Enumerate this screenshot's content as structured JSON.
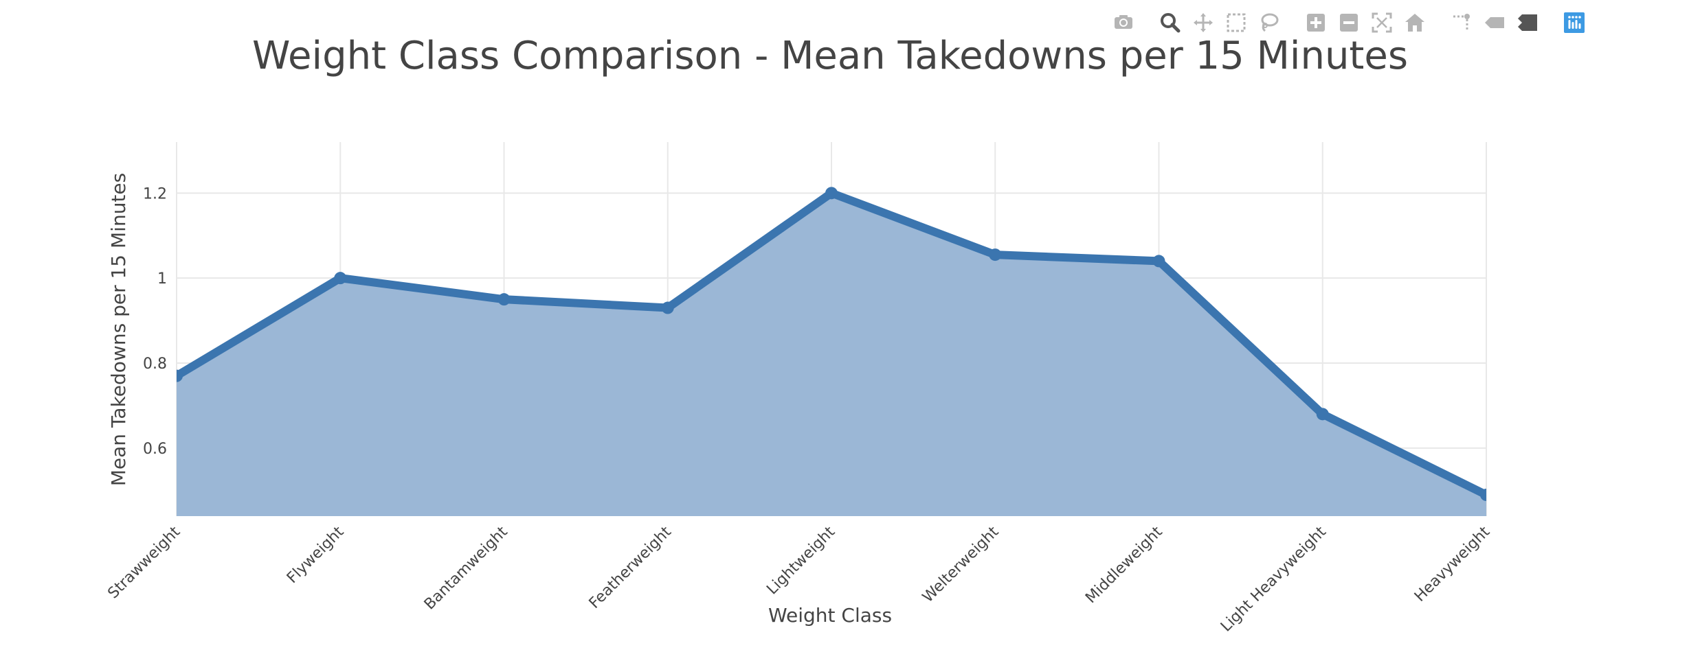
{
  "colors": {
    "line": "#3b75af",
    "fill": "#9bb7d6",
    "grid": "#e8e8e8",
    "text": "#444444",
    "modebar_icon": "#b5b5b5",
    "modebar_active": "#555555",
    "plotly_logo": "#3d9ae3"
  },
  "modebar": {
    "buttons": [
      {
        "name": "camera-icon",
        "group": 0
      },
      {
        "name": "zoom-icon",
        "group": 1
      },
      {
        "name": "pan-icon",
        "group": 1
      },
      {
        "name": "box-select-icon",
        "group": 1
      },
      {
        "name": "lasso-select-icon",
        "group": 1
      },
      {
        "name": "zoom-in-icon",
        "group": 2
      },
      {
        "name": "zoom-out-icon",
        "group": 2
      },
      {
        "name": "autoscale-icon",
        "group": 2
      },
      {
        "name": "reset-axes-icon",
        "group": 2
      },
      {
        "name": "spike-lines-icon",
        "group": 3
      },
      {
        "name": "hover-closest-icon",
        "group": 3
      },
      {
        "name": "hover-compare-icon",
        "group": 3
      },
      {
        "name": "plotly-logo-icon",
        "group": 4
      }
    ]
  },
  "chart_data": {
    "type": "area",
    "title": "Weight Class Comparison - Mean Takedowns per 15 Minutes",
    "xlabel": "Weight Class",
    "ylabel": "Mean Takedowns per 15 Minutes",
    "categories": [
      "Strawweight",
      "Flyweight",
      "Bantamweight",
      "Featherweight",
      "Lightweight",
      "Welterweight",
      "Middleweight",
      "Light Heavyweight",
      "Heavyweight"
    ],
    "values": [
      0.77,
      1.0,
      0.95,
      0.93,
      1.2,
      1.055,
      1.04,
      0.68,
      0.49
    ],
    "yticks": [
      0.6,
      0.8,
      1,
      1.2
    ],
    "ytick_labels": [
      "0.6",
      "0.8",
      "1",
      "1.2"
    ],
    "ylim": [
      0.44,
      1.32
    ],
    "grid": true,
    "fill": "tozeroy"
  }
}
